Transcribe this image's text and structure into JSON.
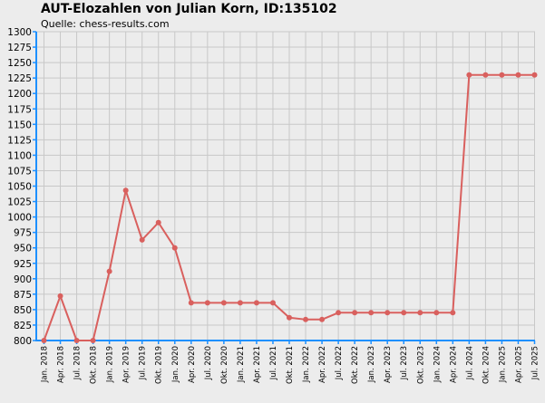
{
  "header": {
    "title": "AUT-Elozahlen von Julian Korn, ID:135102",
    "source": "Quelle: chess-results.com"
  },
  "chart_data": {
    "type": "line",
    "title": "AUT-Elozahlen von Julian Korn, ID:135102",
    "subtitle": "Quelle: chess-results.com",
    "xlabel": "",
    "ylabel": "",
    "ylim": [
      800,
      1300
    ],
    "yticks": [
      800,
      825,
      850,
      875,
      900,
      925,
      950,
      975,
      1000,
      1025,
      1050,
      1075,
      1100,
      1125,
      1150,
      1175,
      1200,
      1225,
      1250,
      1275,
      1300
    ],
    "grid": true,
    "categories": [
      "Jan. 2018",
      "Apr. 2018",
      "Jul. 2018",
      "Okt. 2018",
      "Jan. 2019",
      "Apr. 2019",
      "Jul. 2019",
      "Okt. 2019",
      "Jan. 2020",
      "Apr. 2020",
      "Jul. 2020",
      "Okt. 2020",
      "Jan. 2021",
      "Apr. 2021",
      "Jul. 2021",
      "Okt. 2021",
      "Jan. 2022",
      "Apr. 2022",
      "Jul. 2022",
      "Okt. 2022",
      "Jan. 2023",
      "Apr. 2023",
      "Jul. 2023",
      "Okt. 2023",
      "Jan. 2024",
      "Apr. 2024",
      "Jul. 2024",
      "Okt. 2024",
      "Jan. 2025",
      "Apr. 2025",
      "Jul. 2025"
    ],
    "series": [
      {
        "color": "#d9605e",
        "values": [
          800,
          872,
          800,
          800,
          912,
          1043,
          963,
          991,
          950,
          861,
          861,
          861,
          861,
          861,
          861,
          837,
          834,
          834,
          845,
          845,
          845,
          845,
          845,
          845,
          845,
          845,
          1230,
          1230,
          1230,
          1230,
          1230
        ]
      }
    ]
  }
}
